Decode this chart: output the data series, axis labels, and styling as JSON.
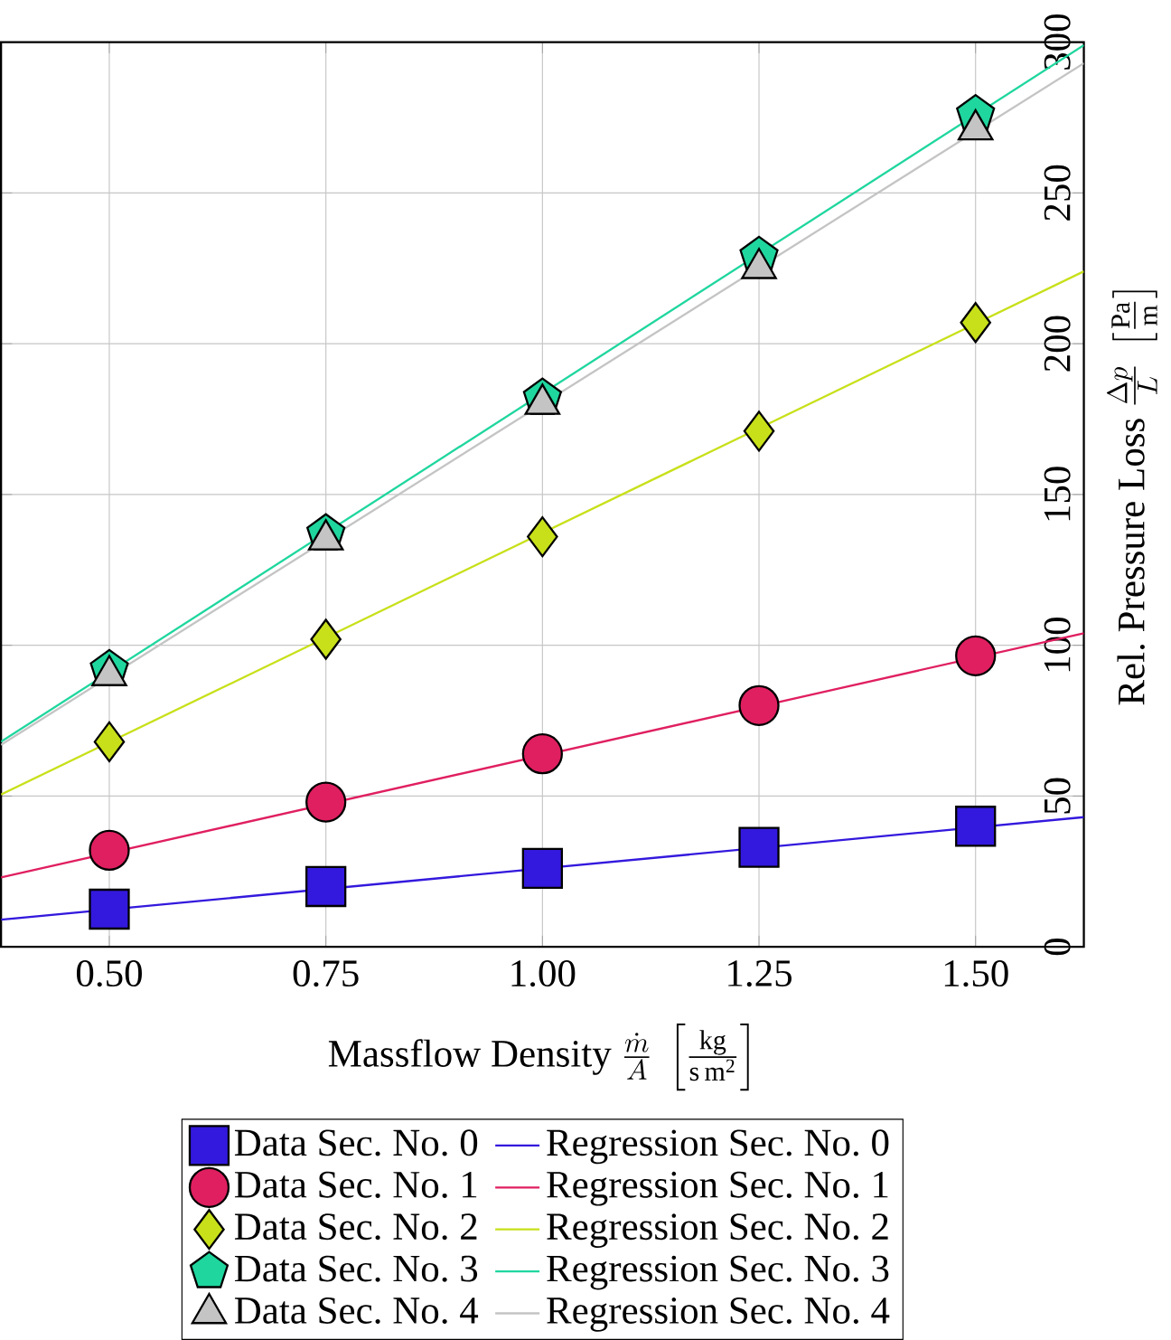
{
  "chart_data": {
    "type": "scatter",
    "xlabel": "\\text{Massflow Density } \\frac{\\dot{m}}{A}\\ \\left[\\frac{\\mathrm{kg}}{\\mathrm{s\\,m^{2}}}\\right]",
    "ylabel": "\\text{Rel. Pressure Loss } \\frac{\\Delta p}{L}\\ \\left[\\frac{\\mathrm{Pa}}{\\mathrm{m}}\\right]",
    "xlim": [
      0.375,
      1.625
    ],
    "ylim": [
      0,
      300
    ],
    "xticks": [
      {
        "value": 0.5,
        "label": "0.50"
      },
      {
        "value": 0.75,
        "label": "0.75"
      },
      {
        "value": 1.0,
        "label": "1.00"
      },
      {
        "value": 1.25,
        "label": "1.25"
      },
      {
        "value": 1.5,
        "label": "1.50"
      }
    ],
    "yticks": [
      0,
      50,
      100,
      150,
      200,
      250,
      300
    ],
    "grid": true,
    "legend": "bottom",
    "series": [
      {
        "name": "Data Sec. No. 0",
        "marker": "square",
        "color": "#3319dd",
        "x": [
          0.5,
          0.75,
          1.0,
          1.25,
          1.5
        ],
        "values": [
          12.5,
          20,
          26,
          33,
          40
        ]
      },
      {
        "name": "Regression Sec. No. 0",
        "type": "line",
        "marker": "none",
        "line_style": "solid",
        "color": "#3319dd",
        "x": [
          0.375,
          1.625
        ],
        "values": [
          9,
          43
        ]
      },
      {
        "name": "Data Sec. No. 1",
        "marker": "circle",
        "color": "#e01f60",
        "x": [
          0.5,
          0.75,
          1.0,
          1.25,
          1.5
        ],
        "values": [
          32,
          48,
          64,
          80,
          96.5
        ]
      },
      {
        "name": "Regression Sec. No. 1",
        "type": "line",
        "marker": "none",
        "line_style": "solid",
        "color": "#e01f60",
        "x": [
          0.375,
          1.625
        ],
        "values": [
          23,
          104
        ]
      },
      {
        "name": "Data Sec. No. 2",
        "marker": "diamond",
        "color": "#c8e01a",
        "x": [
          0.5,
          0.75,
          1.0,
          1.25,
          1.5
        ],
        "values": [
          68,
          102,
          136,
          171,
          207
        ]
      },
      {
        "name": "Regression Sec. No. 2",
        "type": "line",
        "marker": "none",
        "line_style": "solid",
        "color": "#c8e01a",
        "x": [
          0.375,
          1.625
        ],
        "values": [
          50.5,
          224
        ]
      },
      {
        "name": "Data Sec. No. 3",
        "color": "#1fd69e",
        "x": [
          0.5,
          0.75,
          1.0,
          1.25,
          1.5
        ],
        "values": [
          92,
          137,
          182,
          229,
          276
        ]
      },
      {
        "name": "Regression Sec. No. 3",
        "type": "line",
        "marker": "none",
        "line_style": "solid",
        "color": "#1fd69e",
        "x": [
          0.375,
          1.625
        ],
        "values": [
          68,
          299
        ]
      },
      {
        "name": "Data Sec. No. 4",
        "marker": "triangle",
        "color": "#c4c4c4",
        "x": [
          0.5,
          0.75,
          1.0,
          1.25,
          1.5
        ],
        "values": [
          90,
          135,
          180,
          225,
          271
        ]
      },
      {
        "name": "Regression Sec. No. 4",
        "type": "line",
        "marker": "none",
        "line_style": "solid",
        "color": "#c4c4c4",
        "x": [
          0.375,
          1.625
        ],
        "values": [
          67,
          293
        ]
      }
    ]
  }
}
